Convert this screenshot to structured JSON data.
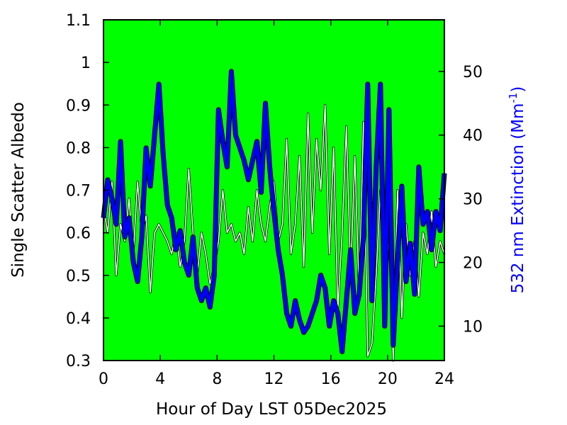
{
  "colors": {
    "plot_background": "#00ff00",
    "albedo_line": "#ffffff",
    "albedo_outline": "#000000",
    "extinction_line": "#0000ff",
    "extinction_outline": "#000000",
    "right_axis_title": "#0000ff"
  },
  "chart_data": {
    "type": "line",
    "title": "",
    "xlabel": "Hour of Day LST 05Dec2025",
    "ylabel": "Single Scatter Albedo",
    "y2label": {
      "main": "532 nm Extinction (Mm",
      "sup": "-1",
      "tail": ")"
    },
    "xlim": [
      0,
      24
    ],
    "ylim": [
      0.3,
      1.1
    ],
    "y2lim": [
      4.6,
      58.1
    ],
    "x_ticks": [
      "0",
      "4",
      "8",
      "12",
      "16",
      "20",
      "24"
    ],
    "y_ticks": [
      "0.3",
      "0.4",
      "0.5",
      "0.6",
      "0.7",
      "0.8",
      "0.9",
      "1",
      "1.1"
    ],
    "y2_ticks": [
      "10",
      "20",
      "30",
      "40",
      "50"
    ],
    "grid": false,
    "legend": "none",
    "series": [
      {
        "axis": "left",
        "x": [
          0.0,
          0.3,
          0.6,
          0.9,
          1.2,
          1.5,
          1.8,
          2.1,
          2.4,
          2.7,
          3.0,
          3.3,
          3.6,
          3.9,
          4.2,
          4.5,
          4.8,
          5.1,
          5.4,
          5.7,
          6.0,
          6.3,
          6.6,
          6.9,
          7.2,
          7.5,
          7.8,
          8.1,
          8.4,
          8.7,
          9.0,
          9.3,
          9.6,
          9.9,
          10.2,
          10.5,
          10.8,
          11.1,
          11.4,
          11.7,
          12.0,
          12.3,
          12.6,
          12.9,
          13.2,
          13.5,
          13.8,
          14.1,
          14.4,
          14.7,
          15.0,
          15.3,
          15.6,
          15.9,
          16.2,
          16.5,
          16.8,
          17.1,
          17.4,
          17.7,
          18.0,
          18.3,
          18.6,
          18.9,
          19.2,
          19.5,
          19.8,
          20.1,
          20.4,
          20.7,
          21.0,
          21.3,
          21.6,
          21.9,
          22.2,
          22.5,
          22.8,
          23.1,
          23.4,
          23.7,
          24.0
        ],
        "values": [
          0.66,
          0.6,
          0.72,
          0.5,
          0.62,
          0.58,
          0.68,
          0.55,
          0.72,
          0.6,
          0.64,
          0.46,
          0.6,
          0.62,
          0.6,
          0.58,
          0.55,
          0.6,
          0.52,
          0.58,
          0.75,
          0.6,
          0.5,
          0.6,
          0.55,
          0.48,
          0.52,
          0.58,
          0.7,
          0.6,
          0.62,
          0.58,
          0.6,
          0.55,
          0.66,
          0.58,
          0.7,
          0.62,
          0.58,
          0.66,
          0.72,
          0.58,
          0.62,
          0.82,
          0.55,
          0.62,
          0.78,
          0.52,
          0.88,
          0.6,
          0.82,
          0.7,
          0.9,
          0.55,
          0.8,
          0.42,
          0.6,
          0.85,
          0.5,
          0.78,
          0.45,
          0.86,
          0.31,
          0.34,
          0.5,
          0.7,
          0.42,
          0.6,
          0.3,
          0.7,
          0.4,
          0.62,
          0.5,
          0.58,
          0.45,
          0.6,
          0.55,
          0.65,
          0.52,
          0.58,
          0.55
        ]
      },
      {
        "axis": "right",
        "x": [
          0.0,
          0.3,
          0.6,
          0.9,
          1.2,
          1.5,
          1.8,
          2.1,
          2.4,
          2.7,
          3.0,
          3.3,
          3.6,
          3.9,
          4.2,
          4.5,
          4.8,
          5.1,
          5.4,
          5.7,
          6.0,
          6.3,
          6.6,
          6.9,
          7.2,
          7.5,
          7.8,
          8.1,
          8.4,
          8.7,
          9.0,
          9.3,
          9.6,
          9.9,
          10.2,
          10.5,
          10.8,
          11.1,
          11.4,
          11.7,
          12.0,
          12.3,
          12.6,
          12.9,
          13.2,
          13.5,
          13.8,
          14.1,
          14.4,
          14.7,
          15.0,
          15.3,
          15.6,
          15.9,
          16.2,
          16.5,
          16.8,
          17.1,
          17.4,
          17.7,
          18.0,
          18.3,
          18.6,
          18.9,
          19.2,
          19.5,
          19.8,
          20.1,
          20.4,
          20.7,
          21.0,
          21.3,
          21.6,
          21.9,
          22.2,
          22.5,
          22.8,
          23.1,
          23.4,
          23.7,
          24.0
        ],
        "values": [
          27,
          33,
          30,
          26,
          39,
          24,
          27,
          20,
          17,
          24,
          38,
          32,
          40,
          48,
          37,
          29,
          27,
          22,
          25,
          20,
          18,
          24,
          16,
          14,
          16,
          13,
          18,
          44,
          39,
          35,
          50,
          40,
          38,
          36,
          33,
          36,
          39,
          31,
          45,
          35,
          28,
          22,
          18,
          12,
          10,
          14,
          11,
          9,
          10,
          12,
          14,
          18,
          16,
          10,
          14,
          12,
          6,
          14,
          22,
          12,
          15,
          24,
          48,
          14,
          35,
          48,
          10,
          44,
          7,
          20,
          32,
          17,
          23,
          15,
          35,
          26,
          28,
          22,
          28,
          25,
          34
        ]
      }
    ]
  }
}
